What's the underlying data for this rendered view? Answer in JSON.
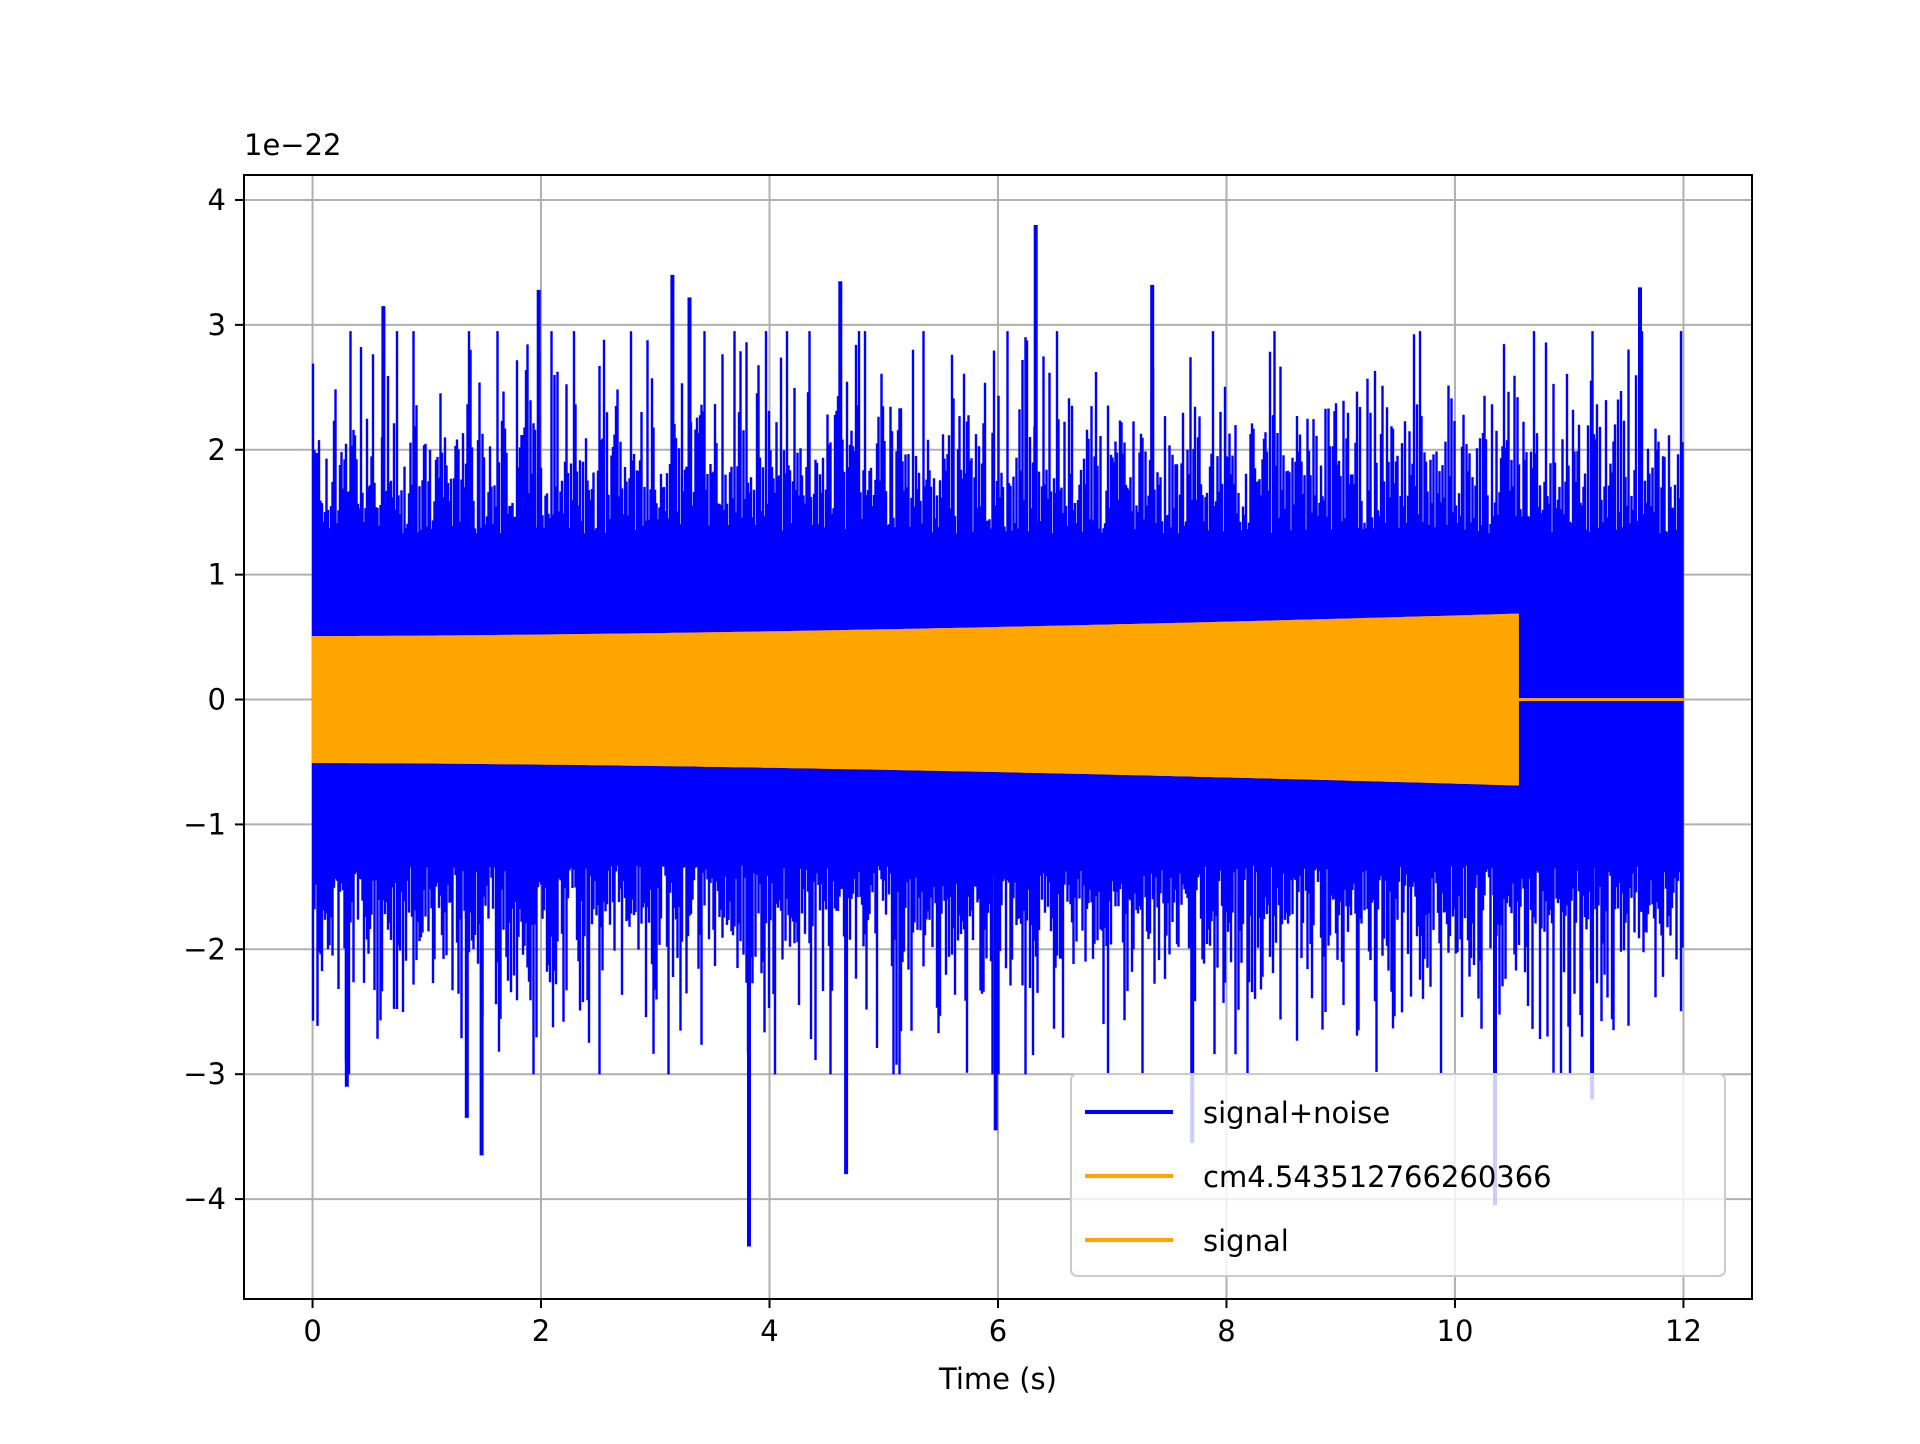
{
  "chart_data": {
    "type": "line",
    "title": "",
    "xlabel": "Time (s)",
    "ylabel": "",
    "y_offset_label": "1e−22",
    "xlim": [
      -0.6,
      12.6
    ],
    "ylim": [
      -4.8,
      4.2
    ],
    "x_ticks": [
      0,
      2,
      4,
      6,
      8,
      10,
      12
    ],
    "x_tick_labels": [
      "0",
      "2",
      "4",
      "6",
      "8",
      "10",
      "12"
    ],
    "y_ticks": [
      -4,
      -3,
      -2,
      -1,
      0,
      1,
      2,
      3,
      4
    ],
    "y_tick_labels": [
      "−4",
      "−3",
      "−2",
      "−1",
      "0",
      "1",
      "2",
      "3",
      "4"
    ],
    "grid": true,
    "legend_position": "lower-right",
    "series": [
      {
        "name": "signal+noise",
        "color": "#0000ff",
        "kind": "noise-envelope",
        "t_range": [
          0,
          12
        ],
        "typical_extent": 1.4,
        "peaks": [
          {
            "x": 0.62,
            "y": 3.15
          },
          {
            "x": 1.98,
            "y": 3.28
          },
          {
            "x": 3.15,
            "y": 3.4
          },
          {
            "x": 3.3,
            "y": 3.22
          },
          {
            "x": 4.62,
            "y": 3.35
          },
          {
            "x": 6.33,
            "y": 3.8
          },
          {
            "x": 7.35,
            "y": 3.32
          },
          {
            "x": 11.62,
            "y": 3.3
          },
          {
            "x": 0.3,
            "y": -3.1
          },
          {
            "x": 1.35,
            "y": -3.35
          },
          {
            "x": 1.48,
            "y": -3.65
          },
          {
            "x": 3.82,
            "y": -4.38
          },
          {
            "x": 4.67,
            "y": -3.8
          },
          {
            "x": 5.98,
            "y": -3.45
          },
          {
            "x": 7.7,
            "y": -3.55
          },
          {
            "x": 10.35,
            "y": -4.05
          },
          {
            "x": 11.2,
            "y": -3.2
          }
        ]
      },
      {
        "name": "cm4.543512766260366",
        "color": "#ffa500",
        "kind": "chirp-envelope",
        "x": [
          0,
          10.55
        ],
        "amplitude": [
          0.5,
          0.68
        ],
        "after_end_value": 0
      },
      {
        "name": "signal",
        "color": "#ffa500",
        "kind": "chirp-envelope",
        "x": [
          0,
          10.55
        ],
        "amplitude": [
          0.5,
          0.68
        ],
        "after_end_value": 0
      }
    ]
  }
}
